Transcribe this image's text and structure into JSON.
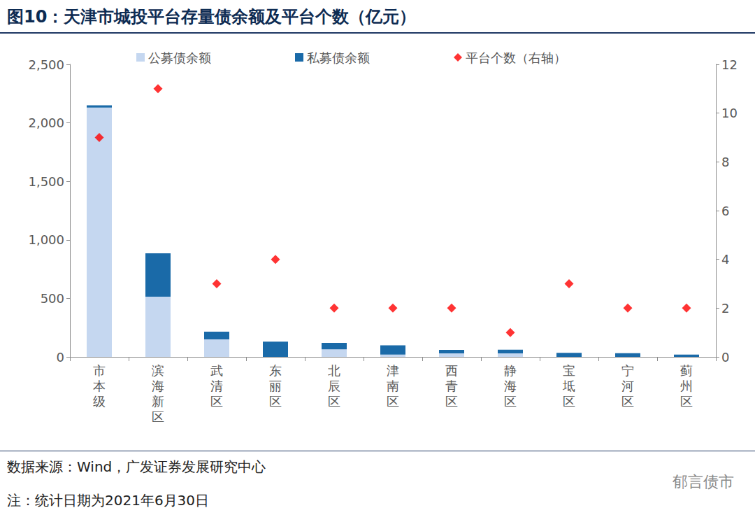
{
  "chart_data": {
    "type": "bar",
    "title": "图10：天津市城投平台存量债余额及平台个数（亿元）",
    "categories": [
      "市本级",
      "滨海新区",
      "武清区",
      "东丽区",
      "北辰区",
      "津南区",
      "西青区",
      "静海区",
      "宝坻区",
      "宁河区",
      "蓟州区"
    ],
    "series": [
      {
        "name": "公募债余额",
        "type": "bar",
        "color": "#c5d7f0",
        "values": [
          2130,
          515,
          150,
          0,
          65,
          20,
          30,
          30,
          0,
          0,
          0
        ]
      },
      {
        "name": "私募债余额",
        "type": "bar",
        "color": "#1a6aa8",
        "values": [
          20,
          370,
          65,
          130,
          55,
          78,
          30,
          32,
          35,
          32,
          20
        ]
      },
      {
        "name": "平台个数（右轴）",
        "type": "scatter",
        "axis": "y2",
        "color": "#ff0000",
        "marker": "diamond",
        "values": [
          9,
          11,
          3,
          4,
          2,
          2,
          2,
          1,
          3,
          2,
          2
        ]
      }
    ],
    "ylim": [
      0,
      2500
    ],
    "yticks": [
      0,
      500,
      {
        "value": 1000,
        "label": "1,000"
      },
      {
        "value": 1500,
        "label": "1,500"
      },
      {
        "value": 2000,
        "label": "2,000"
      },
      {
        "value": 2500,
        "label": "2,500"
      }
    ],
    "y2lim": [
      0,
      12
    ],
    "y2ticks": [
      0,
      2,
      4,
      6,
      8,
      10,
      12
    ],
    "stacked": true,
    "grid": false,
    "legend": "top",
    "source": "数据来源：Wind，广发证券发展研究中心",
    "note": "注：统计日期为2021年6月30日",
    "watermark": "郁言债市"
  }
}
